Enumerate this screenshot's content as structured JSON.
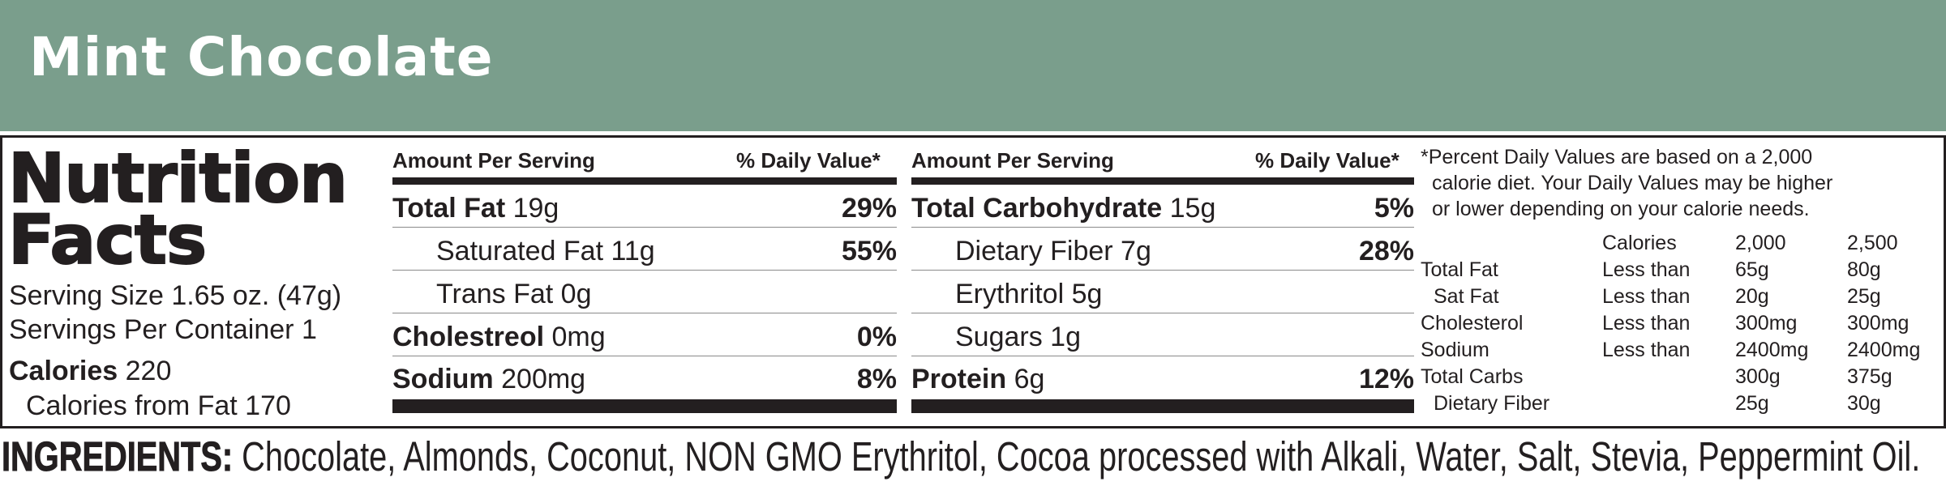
{
  "banner": {
    "title": "Mint Chocolate",
    "color": "#7a9e8c"
  },
  "facts": {
    "title_line1": "Nutrition",
    "title_line2": "Facts",
    "serving_size": "Serving Size 1.65 oz. (47g)",
    "servings_per_container": "Servings Per Container 1",
    "calories_label": "Calories",
    "calories_value": "220",
    "calories_from_fat": "Calories from Fat 170"
  },
  "columns": {
    "left": {
      "header_amount": "Amount Per Serving",
      "header_dv": "% Daily Value*",
      "rows": [
        {
          "name": "Total Fat",
          "amount": "19g",
          "dv": "29%"
        },
        {
          "name": "Saturated Fat 11g",
          "dv": "55%"
        },
        {
          "name": "Trans Fat 0g",
          "dv": ""
        },
        {
          "name": "Cholestreol",
          "amount": "0mg",
          "dv": "0%"
        },
        {
          "name": "Sodium",
          "amount": "200mg",
          "dv": "8%"
        }
      ]
    },
    "right": {
      "header_amount": "Amount Per Serving",
      "header_dv": "% Daily Value*",
      "rows": [
        {
          "name": "Total Carbohydrate",
          "amount": "15g",
          "dv": "5%"
        },
        {
          "name": "Dietary Fiber 7g",
          "dv": "28%"
        },
        {
          "name": "Erythritol 5g",
          "dv": ""
        },
        {
          "name": "Sugars 1g",
          "dv": ""
        },
        {
          "name": "Protein",
          "amount": "6g",
          "dv": "12%"
        }
      ]
    }
  },
  "footnote": {
    "line1": "*Percent Daily Values are based on a 2,000",
    "line2": "calorie diet. Your Daily Values may be higher",
    "line3": "or lower depending on your calorie needs.",
    "table": {
      "header": [
        "",
        "",
        "Calories",
        "2,000",
        "2,500"
      ],
      "rows": [
        [
          "Total Fat",
          "Less than",
          "65g",
          "80g"
        ],
        [
          "Sat Fat",
          "Less than",
          "20g",
          "25g"
        ],
        [
          "Cholesterol",
          "Less than",
          "300mg",
          "300mg"
        ],
        [
          "Sodium",
          "Less than",
          "2400mg",
          "2400mg"
        ],
        [
          "Total Carbs",
          "",
          "300g",
          "375g"
        ],
        [
          "Dietary Fiber",
          "",
          "25g",
          "30g"
        ]
      ]
    }
  },
  "ingredients": {
    "label": "INGREDIENTS:",
    "text": "Chocolate, Almonds, Coconut, NON GMO Erythritol, Cocoa processed with Alkali, Water, Salt, Stevia, Peppermint Oil."
  }
}
